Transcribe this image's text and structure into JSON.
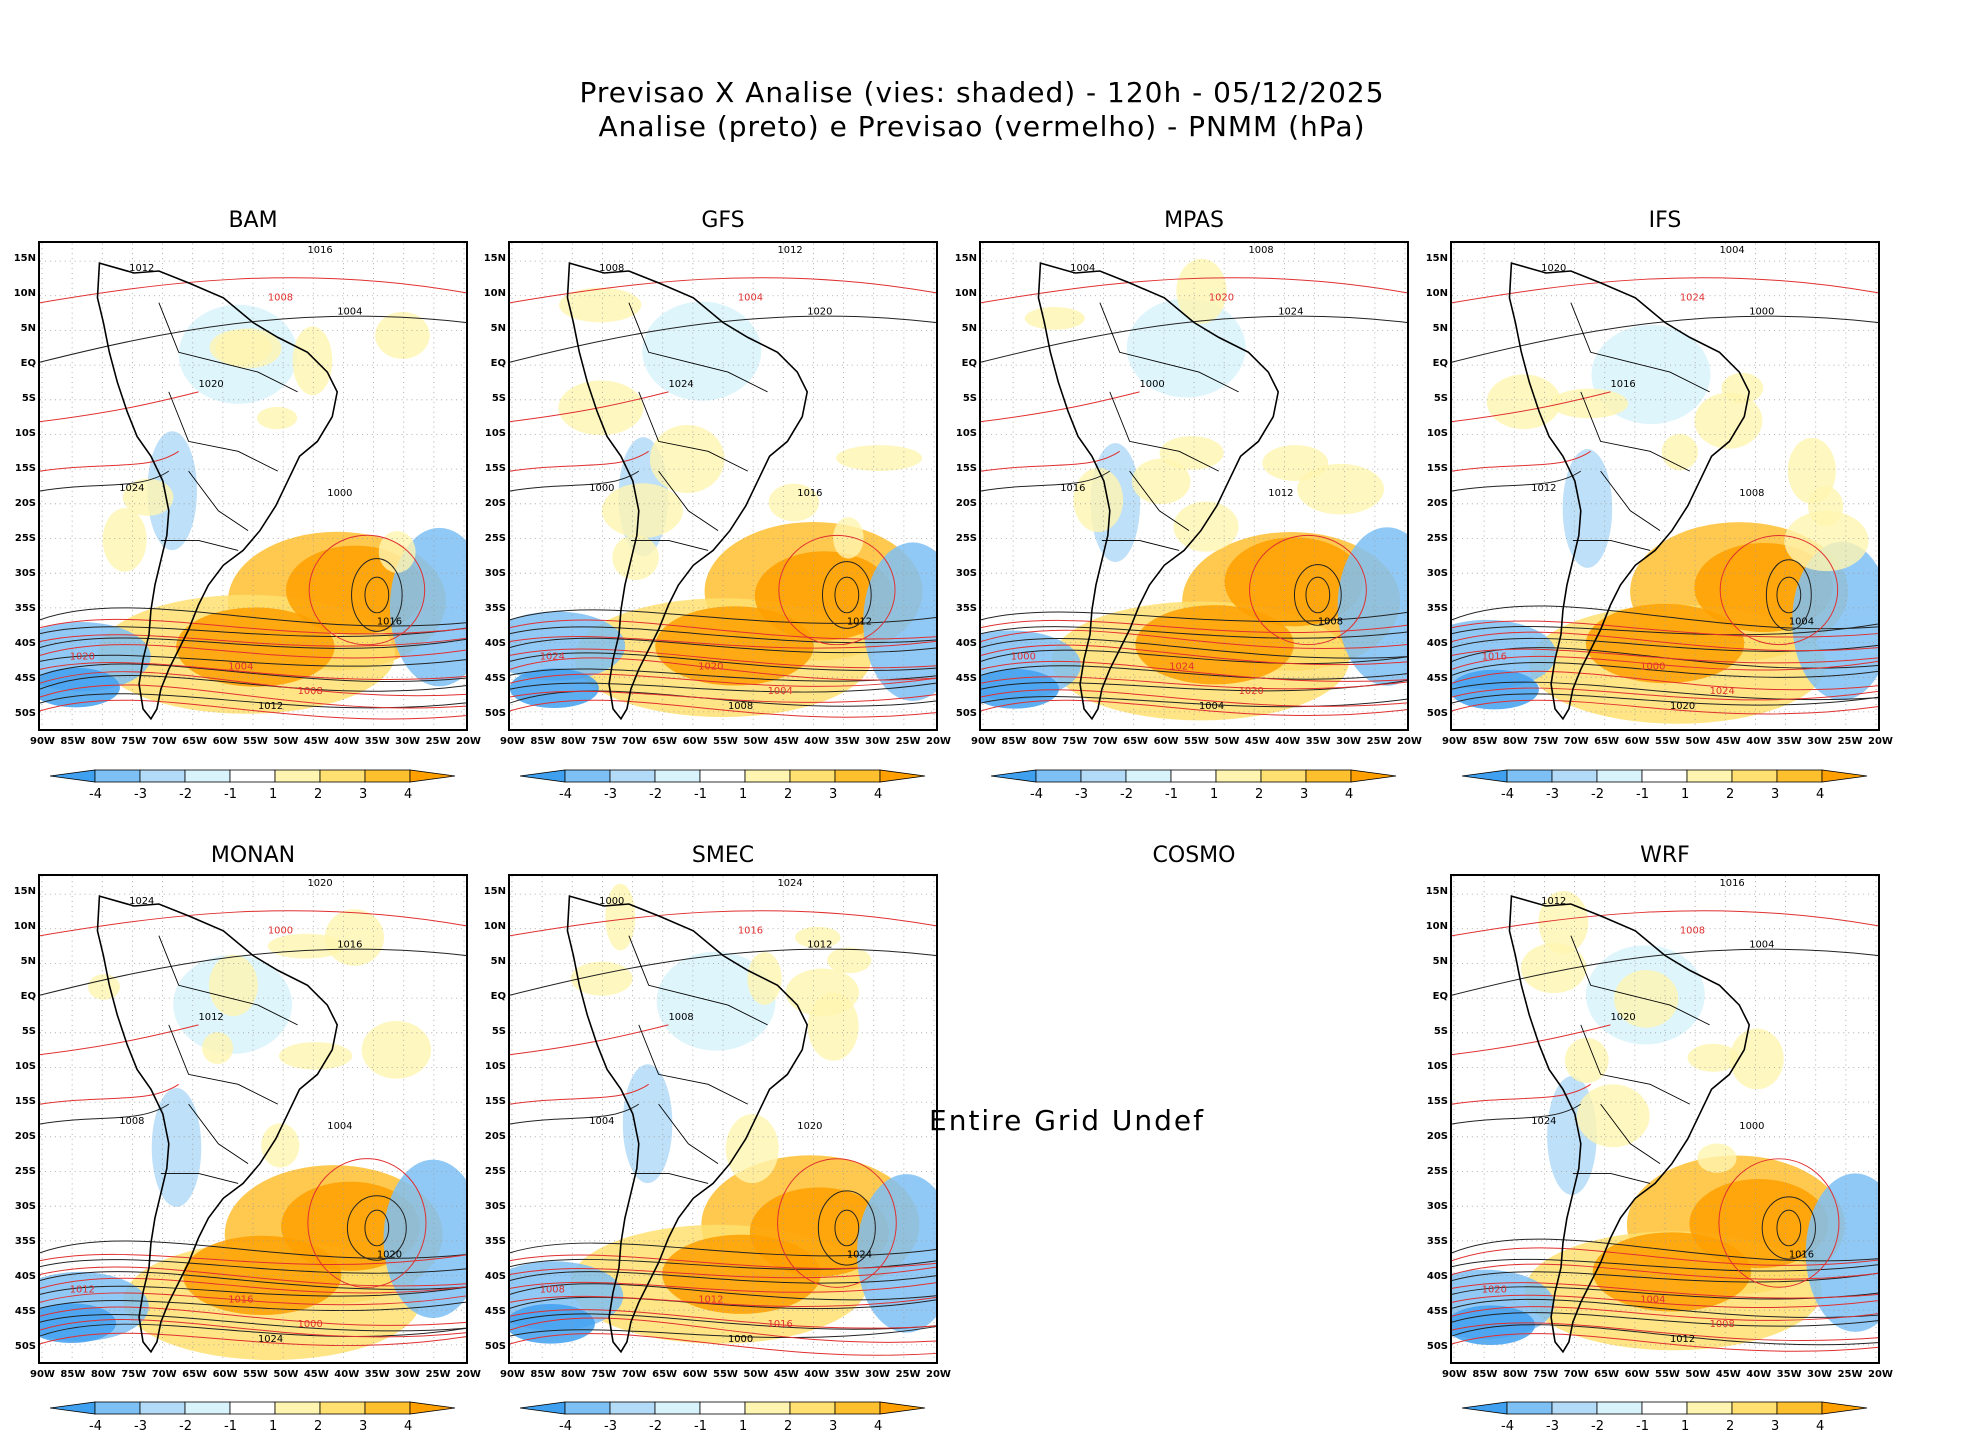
{
  "title": {
    "line1": "Previsao X Analise (vies: shaded) - 120h - 05/12/2025",
    "line2": "Analise (preto) e Previsao (vermelho) - PNMM (hPa)"
  },
  "lat_labels": [
    "15N",
    "10N",
    "5N",
    "EQ",
    "5S",
    "10S",
    "15S",
    "20S",
    "25S",
    "30S",
    "35S",
    "40S",
    "45S",
    "50S"
  ],
  "lon_labels": [
    "90W",
    "85W",
    "80W",
    "75W",
    "70W",
    "65W",
    "60W",
    "55W",
    "50W",
    "45W",
    "40W",
    "35W",
    "30W",
    "25W",
    "20W"
  ],
  "colorbar": {
    "labels": [
      "-4",
      "-3",
      "-2",
      "-1",
      "1",
      "2",
      "3",
      "4"
    ],
    "colors": [
      "#3fa0f0",
      "#7ec0f5",
      "#b3daf7",
      "#d8f3fb",
      "#ffffff",
      "#fff5b0",
      "#ffe070",
      "#ffc030",
      "#ffa000"
    ]
  },
  "undef_text": "Entire Grid Undef",
  "panels": [
    {
      "name": "BAM"
    },
    {
      "name": "GFS"
    },
    {
      "name": "MPAS"
    },
    {
      "name": "IFS"
    },
    {
      "name": "MONAN"
    },
    {
      "name": "SMEC"
    },
    {
      "name": "COSMO"
    },
    {
      "name": "WRF"
    }
  ],
  "contour_labels": [
    "1016",
    "1012",
    "1008",
    "1004",
    "1020",
    "1024",
    "1000"
  ]
}
